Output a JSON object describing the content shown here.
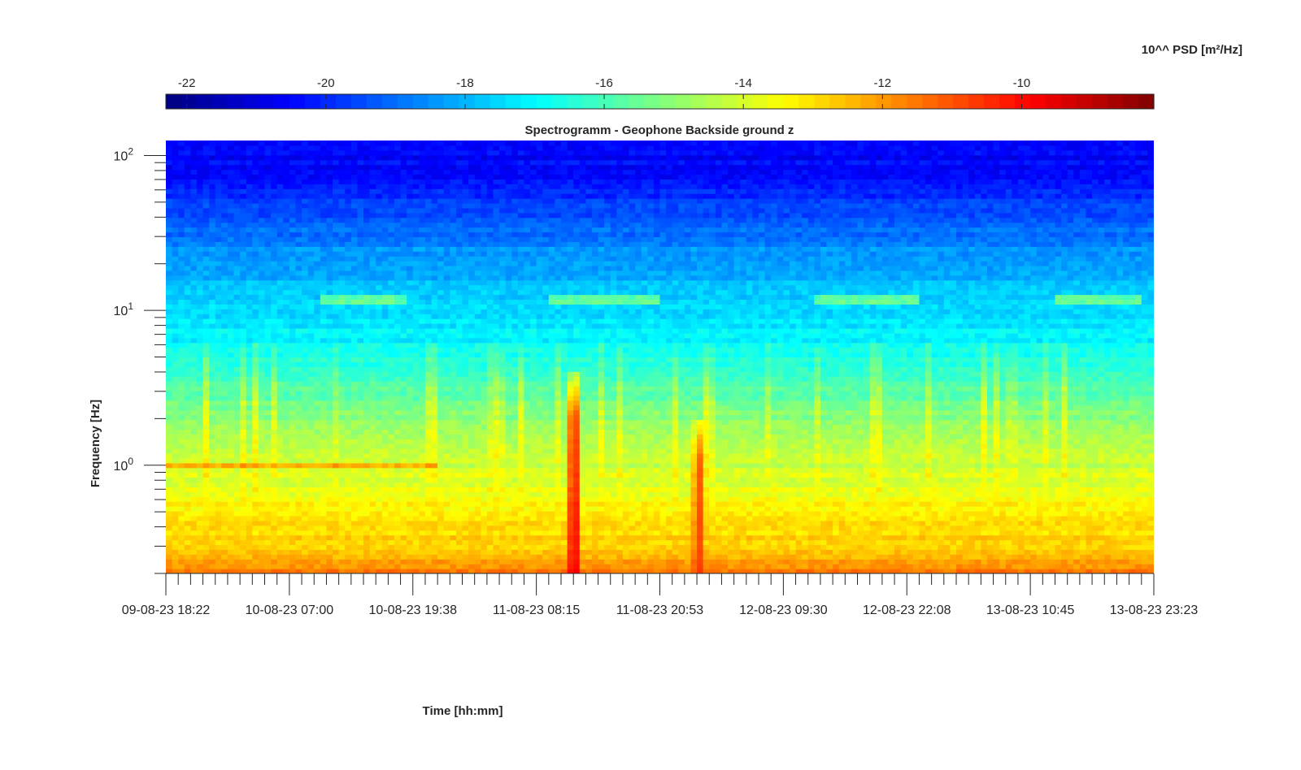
{
  "chart_data": {
    "type": "heatmap",
    "title": "Spectrogramm - Geophone Backside ground z",
    "xlabel": "Time [hh:mm]",
    "ylabel": "Frequency [Hz]",
    "x_tick_labels": [
      "09-08-23 18:22",
      "10-08-23 07:00",
      "10-08-23 19:38",
      "11-08-23 08:15",
      "11-08-23 20:53",
      "12-08-23 09:30",
      "12-08-23 22:08",
      "13-08-23 10:45",
      "13-08-23 23:23"
    ],
    "x_range": [
      "09-08-23 18:22",
      "13-08-23 23:23"
    ],
    "y_scale": "log",
    "y_range_hz": [
      0.2,
      125
    ],
    "y_ticks": [
      {
        "value": 1,
        "base": "10",
        "exp": "0"
      },
      {
        "value": 10,
        "base": "10",
        "exp": "1"
      },
      {
        "value": 100,
        "base": "10",
        "exp": "2"
      }
    ],
    "colorbar": {
      "label": "10^^ PSD [m²/Hz]",
      "range": [
        -22.3,
        -8.1
      ],
      "tick_labels": [
        "-22",
        "-20",
        "-18",
        "-16",
        "-14",
        "-12",
        "-10"
      ],
      "tick_values": [
        -22,
        -20,
        -18,
        -16,
        -14,
        -12,
        -10
      ],
      "colormap": "jet",
      "placement": "top"
    },
    "background_profile": {
      "log10_freq": [
        -0.7,
        -0.5,
        -0.3,
        -0.1,
        0.1,
        0.3,
        0.5,
        0.7,
        0.85,
        0.95,
        1.05,
        1.2,
        1.4,
        1.6,
        1.8,
        1.95,
        2.1
      ],
      "log10_psd": [
        -11.5,
        -12.8,
        -13.3,
        -13.9,
        -14.4,
        -15.0,
        -15.8,
        -16.7,
        -17.2,
        -17.3,
        -17.5,
        -18.0,
        -18.5,
        -19.3,
        -20.2,
        -20.5,
        -20.7
      ]
    },
    "events": [
      {
        "time": "11-08-23 12:05",
        "type": "broadband spike",
        "log10_psd_peak": -9.0,
        "top_freq_hz": 4
      },
      {
        "time": "12-08-23 00:50",
        "type": "broadband spike",
        "log10_psd_peak": -10.5,
        "top_freq_hz": 2
      }
    ],
    "narrowband_lines": [
      {
        "freq_hz": 11.8,
        "from": "10-08-23 10:00",
        "to": "10-08-23 19:00"
      },
      {
        "freq_hz": 11.8,
        "from": "11-08-23 09:30",
        "to": "11-08-23 21:00"
      },
      {
        "freq_hz": 11.8,
        "from": "12-08-23 12:30",
        "to": "12-08-23 23:30"
      },
      {
        "freq_hz": 11.8,
        "from": "13-08-23 13:30",
        "to": "13-08-23 22:00"
      },
      {
        "freq_hz": 1.0,
        "from": "09-08-23 18:22",
        "to": "10-08-23 22:00"
      }
    ],
    "grid": false
  }
}
